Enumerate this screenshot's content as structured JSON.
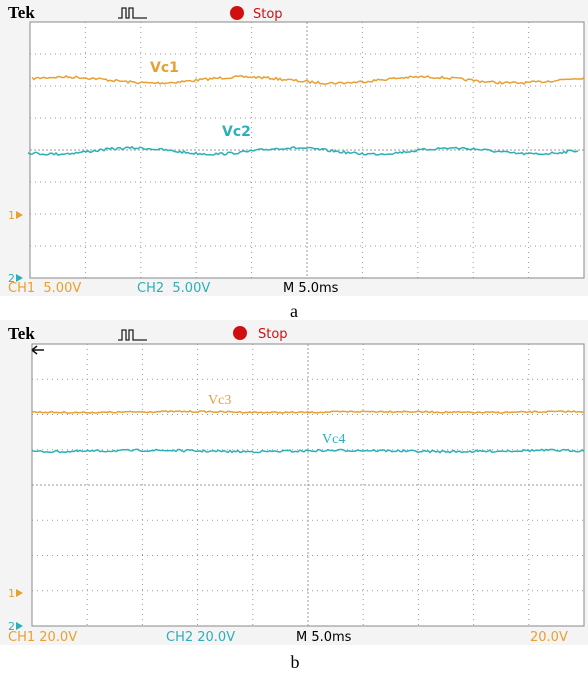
{
  "panels": [
    {
      "header": {
        "brand": "Tek",
        "status": "Stop"
      },
      "traces": [
        {
          "label": "Vc1"
        },
        {
          "label": "Vc2"
        }
      ],
      "markers": [
        "1",
        "2"
      ],
      "footer": {
        "ch1": "CH1  5.00V",
        "ch2": "CH2  5.00V",
        "timebase": "M 5.0ms"
      },
      "caption": "a"
    },
    {
      "header": {
        "brand": "Tek",
        "status": "Stop"
      },
      "traces": [
        {
          "label": "Vc3"
        },
        {
          "label": "Vc4"
        }
      ],
      "markers": [
        "1",
        "2"
      ],
      "footer": {
        "ch1": "CH1 20.0V",
        "ch2": "CH2 20.0V",
        "timebase": "M 5.0ms",
        "trigger": "20.0V"
      },
      "caption": "b"
    }
  ]
}
